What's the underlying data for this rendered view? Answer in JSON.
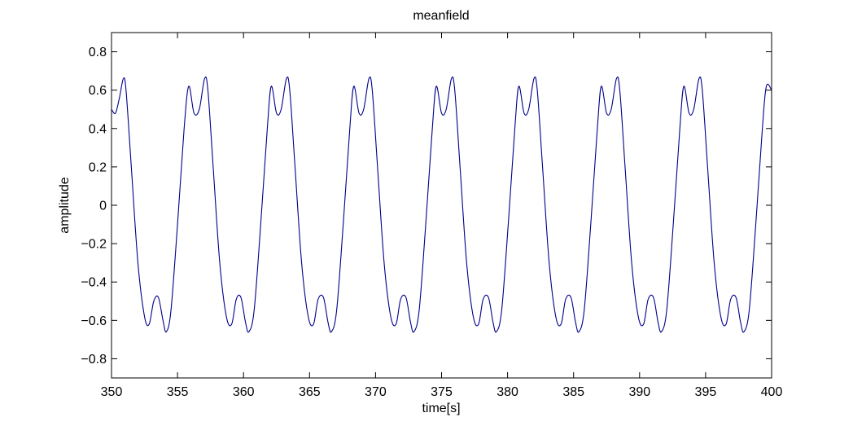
{
  "chart_data": {
    "type": "line",
    "title": "meanfield",
    "xlabel": "time[s]",
    "ylabel": "amplitude",
    "xlim": [
      350,
      400
    ],
    "ylim": [
      -0.9,
      0.9
    ],
    "xticks": [
      350,
      355,
      360,
      365,
      370,
      375,
      380,
      385,
      390,
      395,
      400
    ],
    "yticks": [
      0.8,
      0.6,
      0.4,
      0.2,
      0,
      -0.2,
      -0.4,
      -0.6,
      -0.8
    ],
    "xtick_labels": [
      "350",
      "355",
      "360",
      "365",
      "370",
      "375",
      "380",
      "385",
      "390",
      "395",
      "400"
    ],
    "ytick_labels": [
      "0.8",
      "0.6",
      "0.4",
      "0.2",
      "0",
      "−0.2",
      "−0.4",
      "−0.6",
      "−0.8"
    ],
    "grid": false,
    "series_color": "#00008b",
    "series": [
      {
        "x": [
          350.0,
          350.3,
          350.6,
          350.9,
          351.1,
          351.5,
          352.0,
          352.5,
          352.85,
          353.2,
          353.55,
          353.9,
          354.15,
          354.5,
          355.0,
          355.5,
          355.85,
          356.25,
          356.65,
          357.05,
          357.3,
          357.7,
          358.2,
          358.7,
          359.1,
          359.45,
          359.8,
          360.15,
          360.4,
          360.8,
          361.3,
          361.8,
          362.1,
          362.5,
          362.85,
          363.25,
          363.5,
          363.9,
          364.4,
          364.9,
          365.3,
          365.65,
          366.05,
          366.4,
          366.65,
          367.05,
          367.55,
          368.05,
          368.35,
          368.75,
          369.1,
          369.5,
          369.75,
          370.15,
          370.65,
          371.15,
          371.55,
          371.9,
          372.3,
          372.65,
          372.9,
          373.3,
          373.8,
          374.3,
          374.6,
          375.0,
          375.35,
          375.75,
          376.0,
          376.4,
          376.9,
          377.4,
          377.8,
          378.15,
          378.55,
          378.9,
          379.15,
          379.55,
          380.05,
          380.55,
          380.85,
          381.25,
          381.6,
          382.0,
          382.25,
          382.65,
          383.15,
          383.65,
          384.05,
          384.4,
          384.8,
          385.15,
          385.4,
          385.8,
          386.3,
          386.8,
          387.1,
          387.5,
          387.85,
          388.25,
          388.5,
          388.9,
          389.4,
          389.9,
          390.3,
          390.65,
          391.05,
          391.4,
          391.65,
          392.05,
          392.55,
          393.05,
          393.35,
          393.75,
          394.1,
          394.5,
          394.75,
          395.15,
          395.65,
          396.15,
          396.55,
          396.9,
          397.3,
          397.65,
          397.9,
          398.3,
          398.8,
          399.3,
          399.6,
          400.0
        ],
        "y": [
          0.5,
          0.48,
          0.56,
          0.66,
          0.6,
          0.2,
          -0.3,
          -0.58,
          -0.62,
          -0.5,
          -0.48,
          -0.6,
          -0.66,
          -0.55,
          -0.1,
          0.4,
          0.62,
          0.48,
          0.5,
          0.66,
          0.6,
          0.2,
          -0.3,
          -0.58,
          -0.62,
          -0.49,
          -0.48,
          -0.61,
          -0.66,
          -0.55,
          -0.1,
          0.4,
          0.62,
          0.48,
          0.5,
          0.66,
          0.6,
          0.2,
          -0.3,
          -0.58,
          -0.62,
          -0.49,
          -0.48,
          -0.61,
          -0.66,
          -0.55,
          -0.1,
          0.4,
          0.62,
          0.48,
          0.5,
          0.66,
          0.6,
          0.2,
          -0.3,
          -0.58,
          -0.62,
          -0.49,
          -0.48,
          -0.61,
          -0.66,
          -0.55,
          -0.1,
          0.4,
          0.62,
          0.48,
          0.5,
          0.66,
          0.6,
          0.2,
          -0.3,
          -0.58,
          -0.62,
          -0.49,
          -0.48,
          -0.61,
          -0.66,
          -0.55,
          -0.1,
          0.4,
          0.62,
          0.48,
          0.5,
          0.66,
          0.6,
          0.2,
          -0.3,
          -0.58,
          -0.62,
          -0.49,
          -0.48,
          -0.61,
          -0.66,
          -0.55,
          -0.1,
          0.4,
          0.62,
          0.48,
          0.5,
          0.66,
          0.6,
          0.2,
          -0.3,
          -0.58,
          -0.62,
          -0.49,
          -0.48,
          -0.61,
          -0.66,
          -0.55,
          -0.1,
          0.4,
          0.62,
          0.48,
          0.5,
          0.66,
          0.6,
          0.2,
          -0.3,
          -0.58,
          -0.62,
          -0.49,
          -0.48,
          -0.61,
          -0.66,
          -0.55,
          -0.1,
          0.4,
          0.62,
          0.6
        ]
      }
    ]
  }
}
